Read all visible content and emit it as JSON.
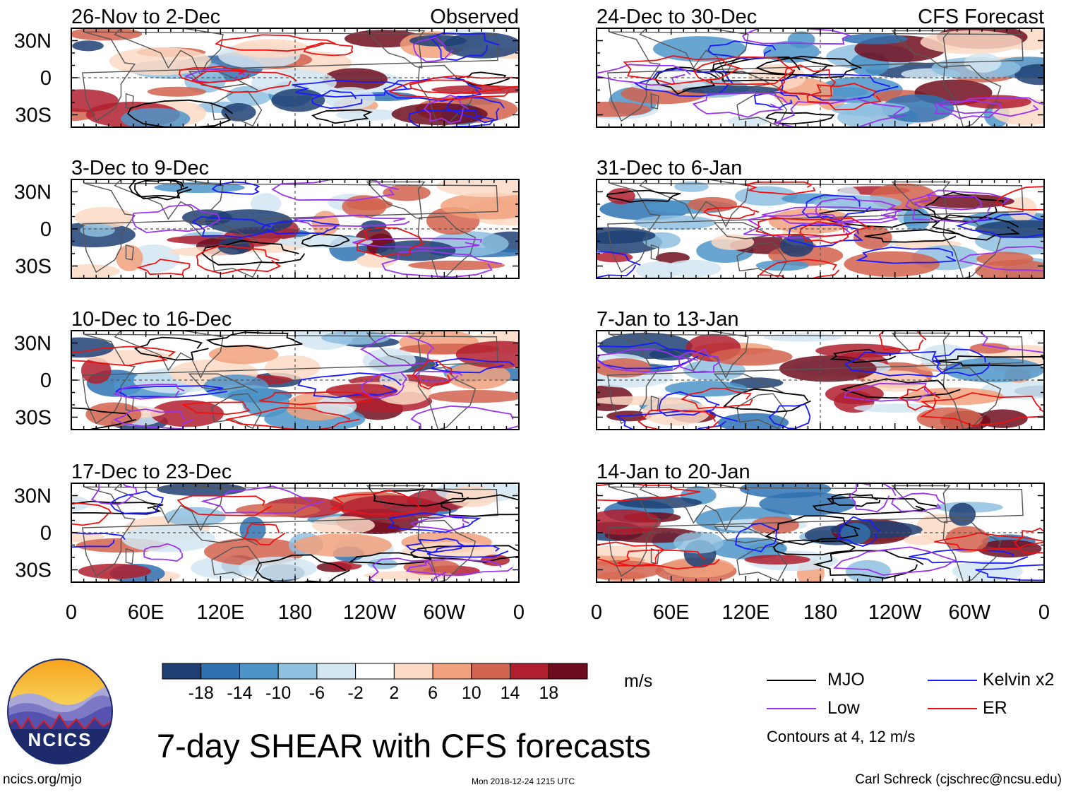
{
  "chart_data": {
    "type": "heatmap",
    "title": "7-day SHEAR with CFS forecasts",
    "units": "m/s",
    "x_ticks": [
      "0",
      "60E",
      "120E",
      "180",
      "120W",
      "60W",
      "0"
    ],
    "y_ticks": [
      "30N",
      "0",
      "30S"
    ],
    "colorbar": {
      "labels": [
        "-18",
        "-14",
        "-10",
        "-6",
        "-2",
        "2",
        "6",
        "10",
        "14",
        "18"
      ],
      "colors": [
        "#1f3f73",
        "#2f72b2",
        "#4d95c9",
        "#8ec0df",
        "#d2e6f2",
        "#ffffff",
        "#fcd9c4",
        "#f1a17d",
        "#d2634f",
        "#b01f2f",
        "#6e0d1f"
      ]
    },
    "panel_headers": {
      "left_tag": "Observed",
      "right_tag": "CFS Forecast"
    },
    "panels": [
      {
        "period": "26-Nov to 2-Dec",
        "source": "Observed",
        "column": "left",
        "row": 0
      },
      {
        "period": "3-Dec to 9-Dec",
        "source": "Observed",
        "column": "left",
        "row": 1
      },
      {
        "period": "10-Dec to 16-Dec",
        "source": "Observed",
        "column": "left",
        "row": 2
      },
      {
        "period": "17-Dec to 23-Dec",
        "source": "Observed",
        "column": "left",
        "row": 3
      },
      {
        "period": "24-Dec to 30-Dec",
        "source": "CFS Forecast",
        "column": "right",
        "row": 0
      },
      {
        "period": "31-Dec to 6-Jan",
        "source": "CFS Forecast",
        "column": "right",
        "row": 1
      },
      {
        "period": "7-Jan to 13-Jan",
        "source": "CFS Forecast",
        "column": "right",
        "row": 2
      },
      {
        "period": "14-Jan to 20-Jan",
        "source": "CFS Forecast",
        "column": "right",
        "row": 3
      }
    ],
    "contour_legend": [
      {
        "label": "MJO",
        "color": "#000000"
      },
      {
        "label": "Kelvin x2",
        "color": "#1a1aff"
      },
      {
        "label": "Low",
        "color": "#9933ee"
      },
      {
        "label": "ER",
        "color": "#ee1111"
      }
    ],
    "contour_note": "Contours at 4, 12 m/s"
  },
  "logo": {
    "text": "NCICS"
  },
  "footer": {
    "left": "ncics.org/mjo",
    "center": "Mon 2018-12-24 1215 UTC",
    "right": "Carl Schreck (cjschrec@ncsu.edu)"
  }
}
